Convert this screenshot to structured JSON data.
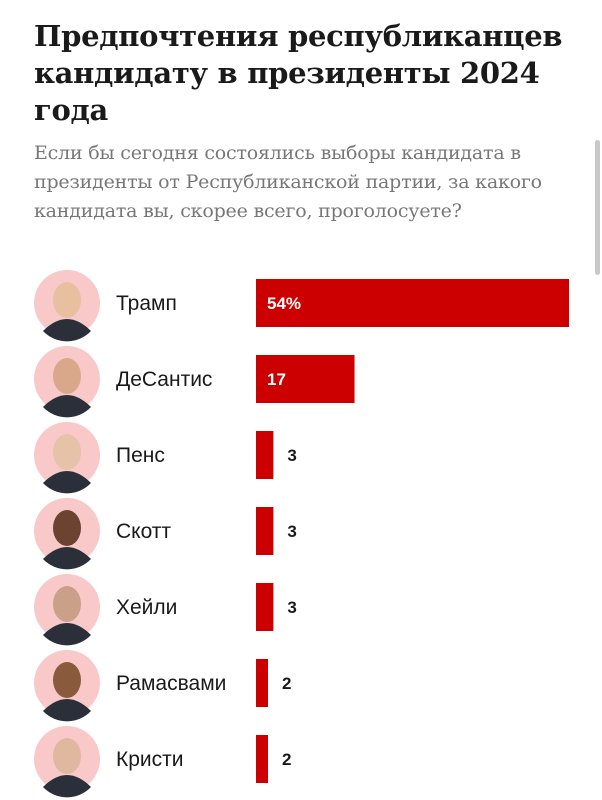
{
  "chart_data": {
    "type": "bar",
    "orientation": "horizontal",
    "title": "Предпочтения республиканцев кандидату в президенты 2024 года",
    "subtitle": "Если бы сегодня состоялись выборы кандидата в президенты от Республиканской партии, за какого кандидата вы, скорее всего, проголосуете?",
    "categories": [
      "Трамп",
      "ДеСантис",
      "Пенс",
      "Скотт",
      "Хейли",
      "Рамасвами",
      "Кристи"
    ],
    "values": [
      54,
      17,
      3,
      3,
      3,
      2,
      2
    ],
    "value_labels": [
      "54%",
      "17",
      "3",
      "3",
      "3",
      "2",
      "2"
    ],
    "bar_color": "#cc0000",
    "avatar_bg_color": "#f9c9c9",
    "grid": false,
    "legend": "none"
  }
}
